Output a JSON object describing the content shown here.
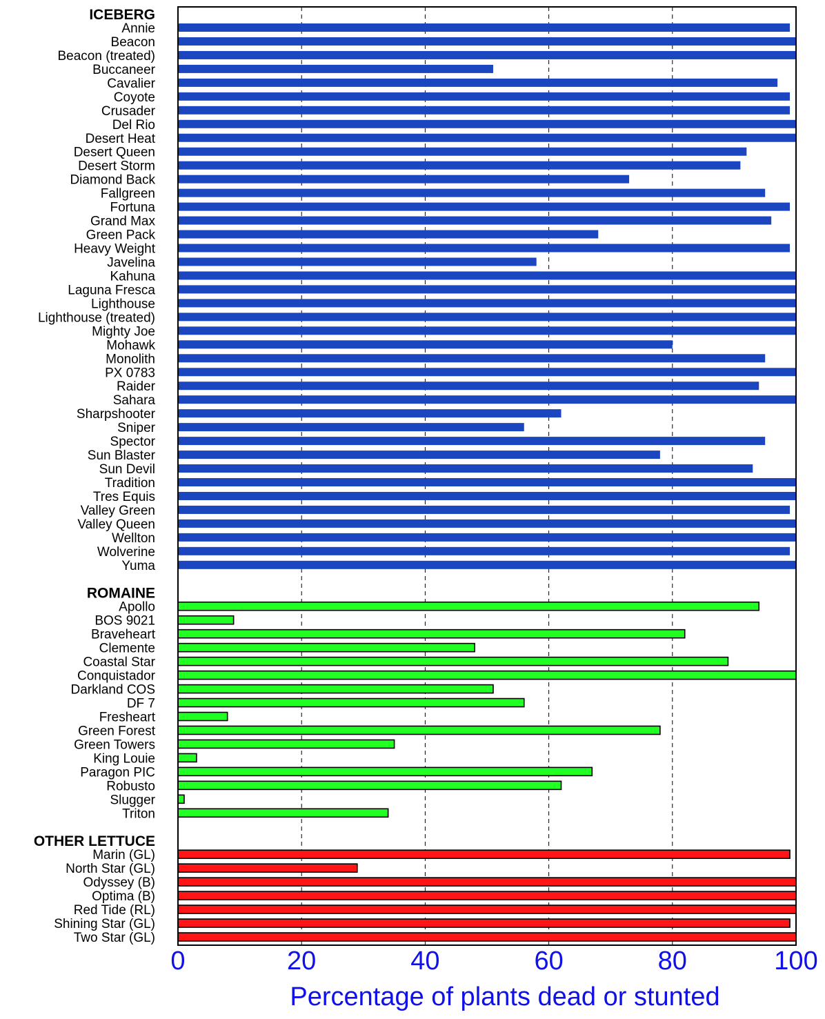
{
  "chart_data": {
    "type": "bar",
    "orientation": "horizontal",
    "xlabel": "Percentage of plants dead or stunted",
    "xlim": [
      0,
      100
    ],
    "xticks": [
      "0",
      "20",
      "40",
      "60",
      "80",
      "100"
    ],
    "grid": "vertical dashed",
    "colors": {
      "axis_text": "#1010e8",
      "iceberg": "#1c45c0",
      "romaine": "#22ff22",
      "other": "#ff1515"
    },
    "groups": [
      {
        "name": "ICEBERG",
        "color": "#1c45c0",
        "categories": [
          "Annie",
          "Beacon",
          "Beacon (treated)",
          "Buccaneer",
          "Cavalier",
          "Coyote",
          "Crusader",
          "Del Rio",
          "Desert Heat",
          "Desert Queen",
          "Desert Storm",
          "Diamond Back",
          "Fallgreen",
          "Fortuna",
          "Grand Max",
          "Green Pack",
          "Heavy Weight",
          "Javelina",
          "Kahuna",
          "Laguna Fresca",
          "Lighthouse",
          "Lighthouse (treated)",
          "Mighty Joe",
          "Mohawk",
          "Monolith",
          "PX 0783",
          "Raider",
          "Sahara",
          "Sharpshooter",
          "Sniper",
          "Spector",
          "Sun Blaster",
          "Sun Devil",
          "Tradition",
          "Tres Equis",
          "Valley Green",
          "Valley Queen",
          "Wellton",
          "Wolverine",
          "Yuma"
        ],
        "values": [
          99,
          100,
          100,
          51,
          97,
          99,
          99,
          100,
          100,
          92,
          91,
          73,
          95,
          99,
          96,
          68,
          99,
          58,
          100,
          100,
          100,
          100,
          100,
          80,
          95,
          100,
          94,
          100,
          62,
          56,
          95,
          78,
          93,
          100,
          100,
          99,
          100,
          100,
          99,
          100
        ]
      },
      {
        "name": "ROMAINE",
        "color": "#22ff22",
        "categories": [
          "Apollo",
          "BOS 9021",
          "Braveheart",
          "Clemente",
          "Coastal Star",
          "Conquistador",
          "Darkland COS",
          "DF 7",
          "Fresheart",
          "Green Forest",
          "Green Towers",
          "King Louie",
          "Paragon PIC",
          "Robusto",
          "Slugger",
          "Triton"
        ],
        "values": [
          94,
          9,
          82,
          48,
          89,
          100,
          51,
          56,
          8,
          78,
          35,
          3,
          67,
          62,
          1,
          34
        ]
      },
      {
        "name": "OTHER LETTUCE",
        "color": "#ff1515",
        "categories": [
          "Marin (GL)",
          "North Star (GL)",
          "Odyssey (B)",
          "Optima (B)",
          "Red Tide (RL)",
          "Shining Star (GL)",
          "Two Star (GL)"
        ],
        "values": [
          99,
          29,
          100,
          100,
          100,
          99,
          100
        ]
      }
    ]
  }
}
